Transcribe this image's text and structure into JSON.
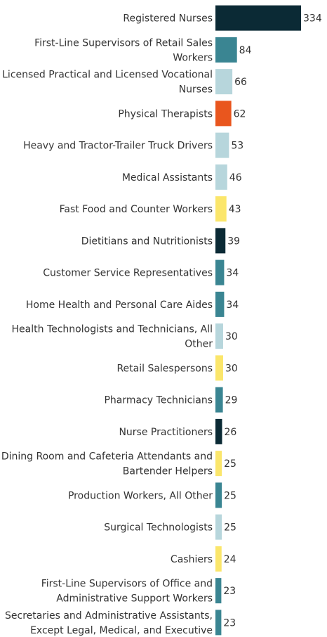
{
  "chart_data": {
    "type": "bar",
    "orientation": "horizontal",
    "grid": false,
    "categories": [
      [
        "Registered Nurses"
      ],
      [
        "First-Line Supervisors of Retail Sales",
        "Workers"
      ],
      [
        "Licensed Practical and Licensed Vocational",
        "Nurses"
      ],
      [
        "Physical Therapists"
      ],
      [
        "Heavy and Tractor-Trailer Truck Drivers"
      ],
      [
        "Medical Assistants"
      ],
      [
        "Fast Food and Counter Workers"
      ],
      [
        "Dietitians and Nutritionists"
      ],
      [
        "Customer Service Representatives"
      ],
      [
        "Home Health and Personal Care Aides"
      ],
      [
        "Health Technologists and Technicians, All",
        "Other"
      ],
      [
        "Retail Salespersons"
      ],
      [
        "Pharmacy Technicians"
      ],
      [
        "Nurse Practitioners"
      ],
      [
        "Dining Room and Cafeteria Attendants and",
        "Bartender Helpers"
      ],
      [
        "Production Workers, All Other"
      ],
      [
        "Surgical Technologists"
      ],
      [
        "Cashiers"
      ],
      [
        "First-Line Supervisors of Office and",
        "Administrative Support Workers"
      ],
      [
        "Secretaries and Administrative Assistants,",
        "Except Legal, Medical, and Executive"
      ]
    ],
    "values": [
      334,
      84,
      66,
      62,
      53,
      46,
      43,
      39,
      34,
      34,
      30,
      30,
      29,
      26,
      25,
      25,
      25,
      24,
      23,
      23
    ],
    "colors": [
      "#0b2a35",
      "#3a8592",
      "#b7d6dc",
      "#e9561e",
      "#b7d6dc",
      "#b7d6dc",
      "#fbe66b",
      "#0b2a35",
      "#3a8592",
      "#3a8592",
      "#b7d6dc",
      "#fbe66b",
      "#3a8592",
      "#0b2a35",
      "#fbe66b",
      "#3a8592",
      "#b7d6dc",
      "#fbe66b",
      "#3a8592",
      "#3a8592"
    ],
    "xlim": [
      0,
      334
    ]
  }
}
